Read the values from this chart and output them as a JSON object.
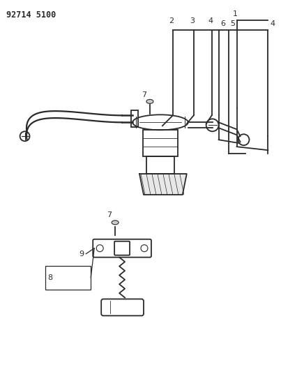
{
  "title": "92714 5100",
  "bg_color": "#ffffff",
  "line_color": "#2a2a2a",
  "fig_width": 4.03,
  "fig_height": 5.33,
  "dpi": 100
}
